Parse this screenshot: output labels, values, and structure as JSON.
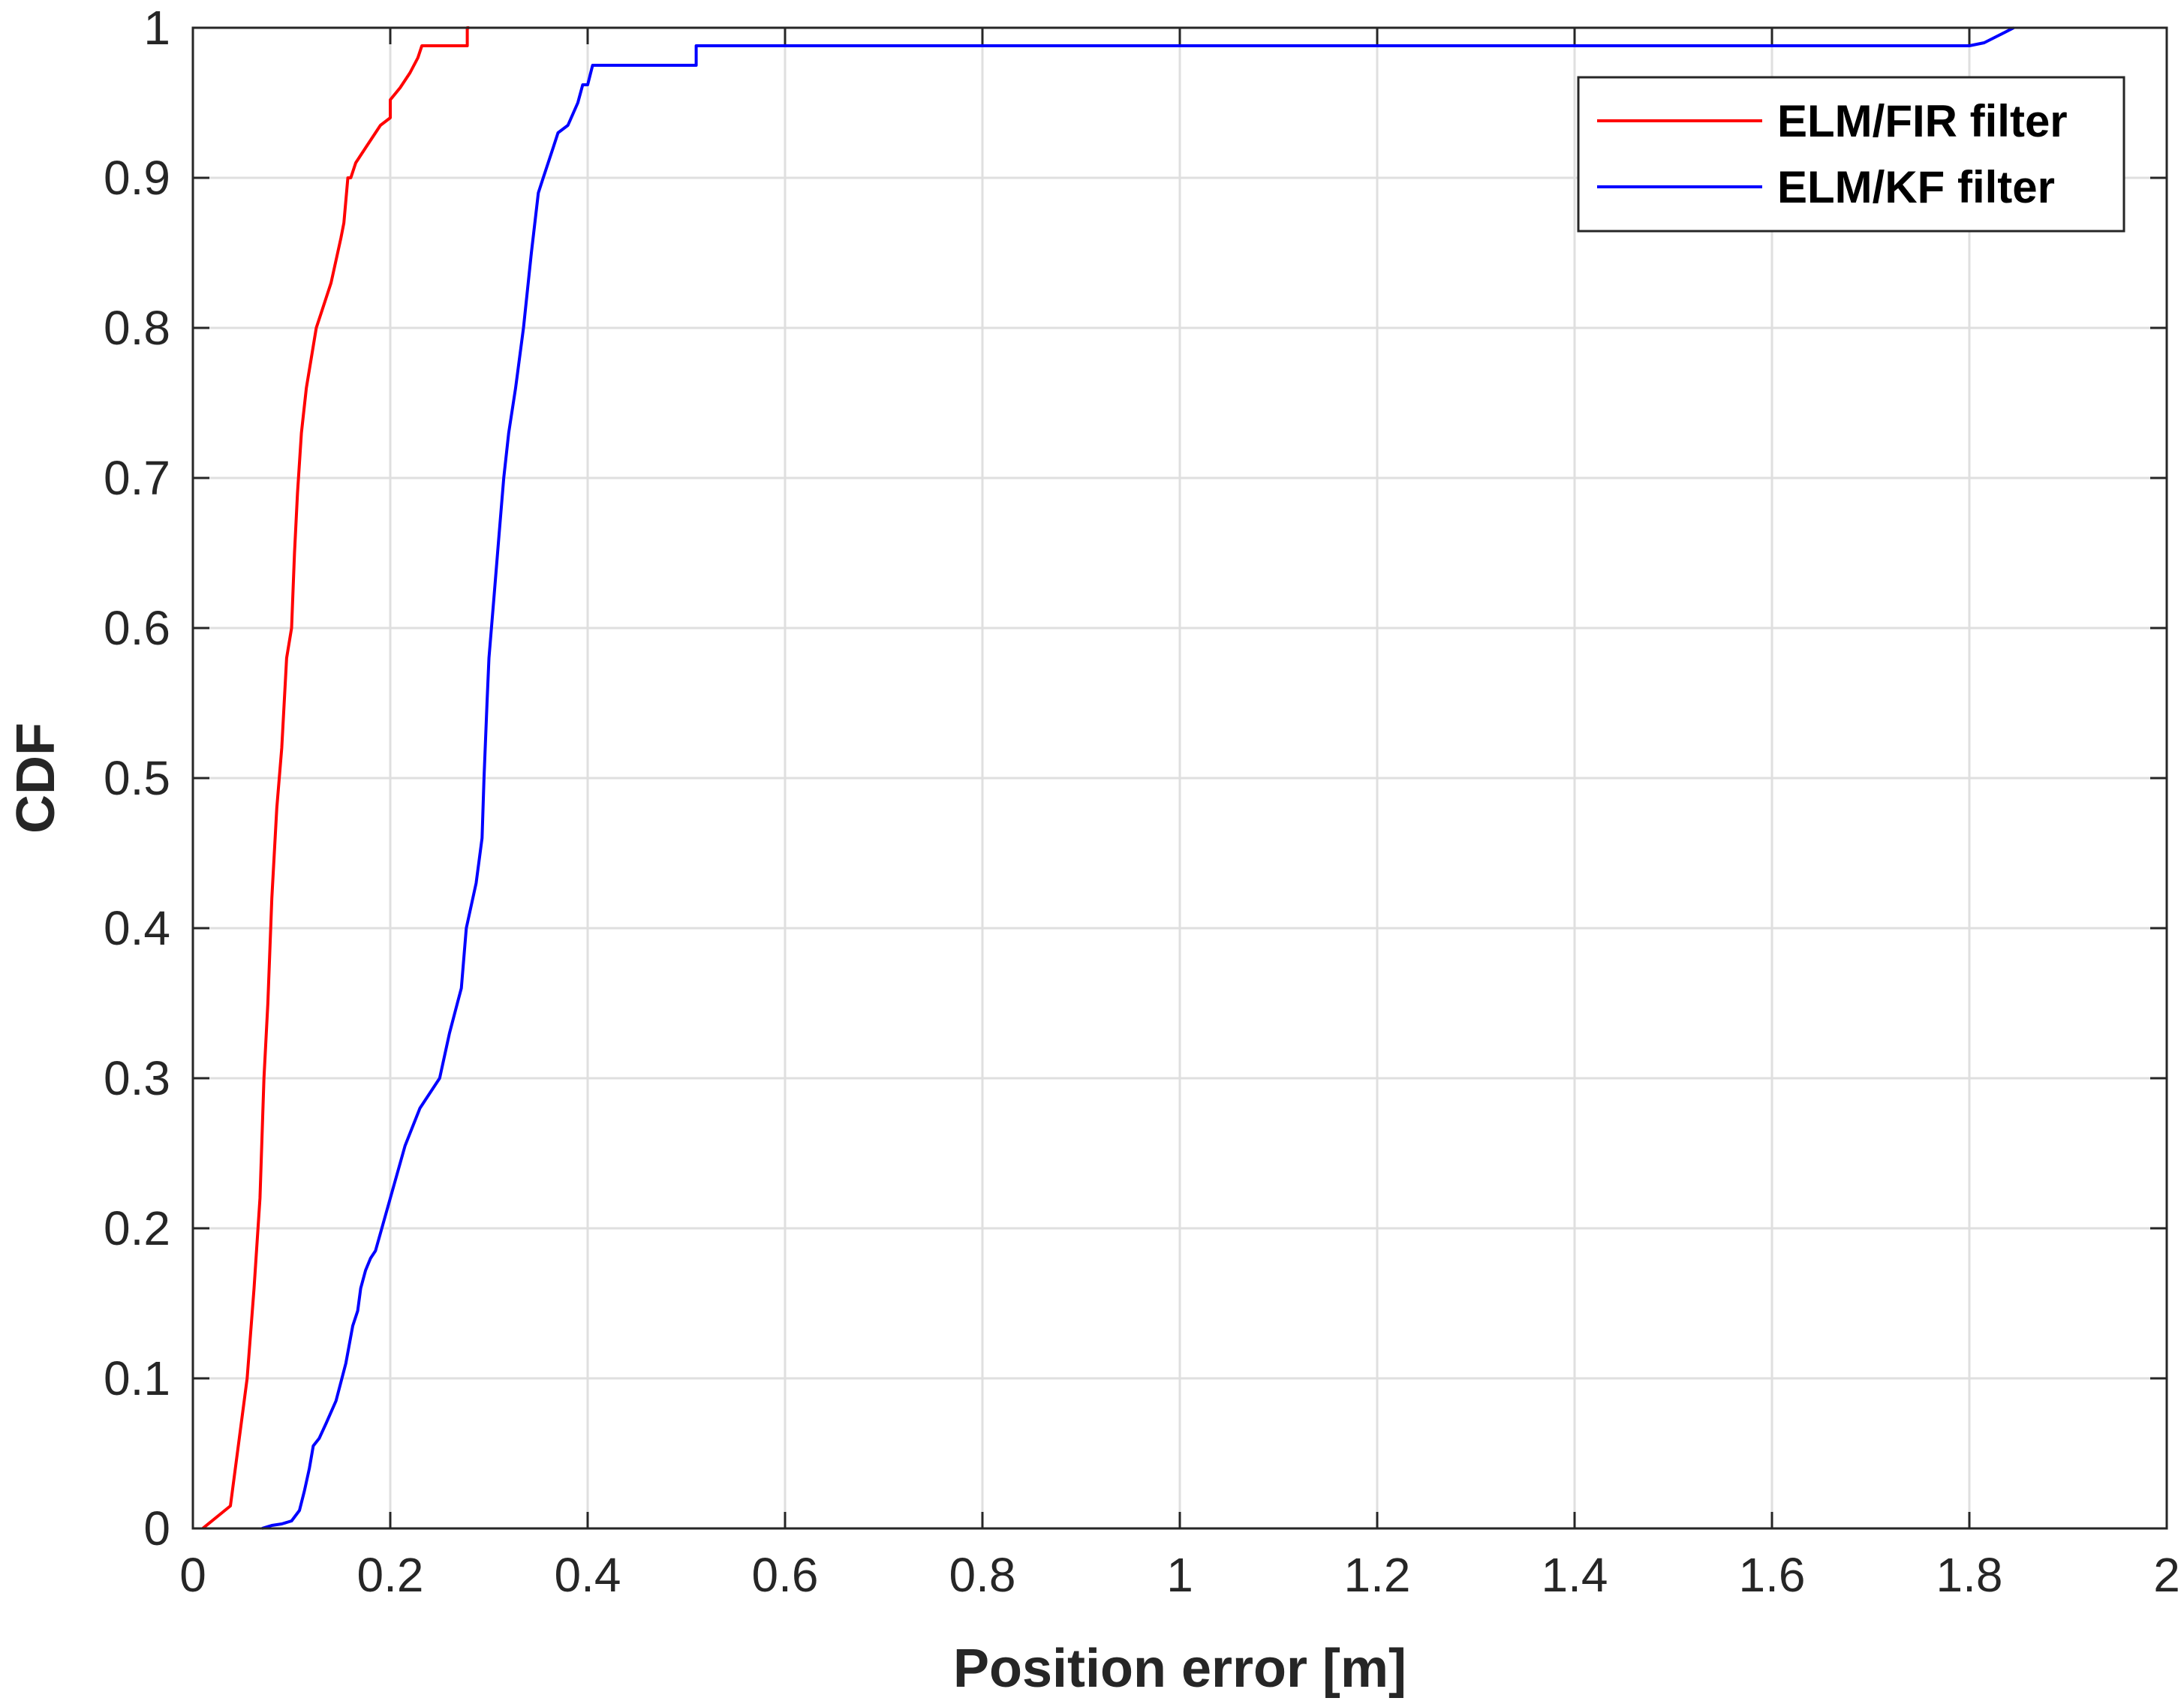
{
  "chart_data": {
    "type": "line",
    "title": "",
    "xlabel": "Position error [m]",
    "ylabel": "CDF",
    "xlim": [
      0,
      2
    ],
    "ylim": [
      0,
      1
    ],
    "xticks": [
      0,
      0.2,
      0.4,
      0.6,
      0.8,
      1,
      1.2,
      1.4,
      1.6,
      1.8,
      2
    ],
    "xtick_labels": [
      "0",
      "0.2",
      "0.4",
      "0.6",
      "0.8",
      "1",
      "1.2",
      "1.4",
      "1.6",
      "1.8",
      "2"
    ],
    "yticks": [
      0,
      0.1,
      0.2,
      0.3,
      0.4,
      0.5,
      0.6,
      0.7,
      0.8,
      0.9,
      1
    ],
    "ytick_labels": [
      "0",
      "0.1",
      "0.2",
      "0.3",
      "0.4",
      "0.5",
      "0.6",
      "0.7",
      "0.8",
      "0.9",
      "1"
    ],
    "grid": true,
    "legend_position": "top-right",
    "series": [
      {
        "name": "ELM/FIR filter",
        "color": "#ff0000",
        "x": [
          0.01,
          0.038,
          0.045,
          0.055,
          0.062,
          0.068,
          0.072,
          0.076,
          0.08,
          0.085,
          0.09,
          0.095,
          0.1,
          0.103,
          0.106,
          0.11,
          0.115,
          0.12,
          0.125,
          0.13,
          0.14,
          0.15,
          0.153,
          0.157,
          0.16,
          0.165,
          0.175,
          0.19,
          0.2,
          0.2,
          0.21,
          0.22,
          0.228,
          0.232,
          0.24,
          0.255,
          0.268,
          0.278,
          0.278,
          0.28
        ],
        "y": [
          0.0,
          0.015,
          0.05,
          0.1,
          0.16,
          0.22,
          0.3,
          0.35,
          0.42,
          0.48,
          0.52,
          0.58,
          0.6,
          0.65,
          0.69,
          0.73,
          0.76,
          0.78,
          0.8,
          0.81,
          0.83,
          0.86,
          0.87,
          0.9,
          0.9,
          0.91,
          0.92,
          0.935,
          0.94,
          0.952,
          0.96,
          0.97,
          0.98,
          0.988,
          0.988,
          0.988,
          0.988,
          0.988,
          1.0,
          1.0
        ]
      },
      {
        "name": "ELM/KF filter",
        "color": "#0000ff",
        "x": [
          0.07,
          0.08,
          0.09,
          0.1,
          0.108,
          0.113,
          0.118,
          0.122,
          0.128,
          0.135,
          0.145,
          0.155,
          0.162,
          0.167,
          0.17,
          0.175,
          0.18,
          0.185,
          0.2,
          0.215,
          0.23,
          0.25,
          0.26,
          0.268,
          0.272,
          0.277,
          0.287,
          0.293,
          0.295,
          0.298,
          0.3,
          0.305,
          0.31,
          0.315,
          0.32,
          0.327,
          0.335,
          0.343,
          0.35,
          0.355,
          0.36,
          0.365,
          0.37,
          0.38,
          0.39,
          0.395,
          0.4,
          0.405,
          0.412,
          0.42,
          0.42,
          0.51,
          0.51,
          0.6,
          0.8,
          1.0,
          1.2,
          1.4,
          1.6,
          1.8,
          1.815,
          1.83,
          1.845
        ],
        "y": [
          0.0,
          0.002,
          0.003,
          0.005,
          0.012,
          0.025,
          0.04,
          0.055,
          0.06,
          0.07,
          0.085,
          0.11,
          0.135,
          0.145,
          0.16,
          0.172,
          0.18,
          0.185,
          0.22,
          0.255,
          0.28,
          0.3,
          0.33,
          0.35,
          0.36,
          0.4,
          0.43,
          0.46,
          0.5,
          0.55,
          0.58,
          0.62,
          0.66,
          0.7,
          0.73,
          0.76,
          0.8,
          0.85,
          0.89,
          0.9,
          0.91,
          0.92,
          0.93,
          0.935,
          0.95,
          0.962,
          0.962,
          0.975,
          0.975,
          0.975,
          0.975,
          0.975,
          0.988,
          0.988,
          0.988,
          0.988,
          0.988,
          0.988,
          0.988,
          0.988,
          0.99,
          0.995,
          1.0
        ]
      }
    ]
  }
}
